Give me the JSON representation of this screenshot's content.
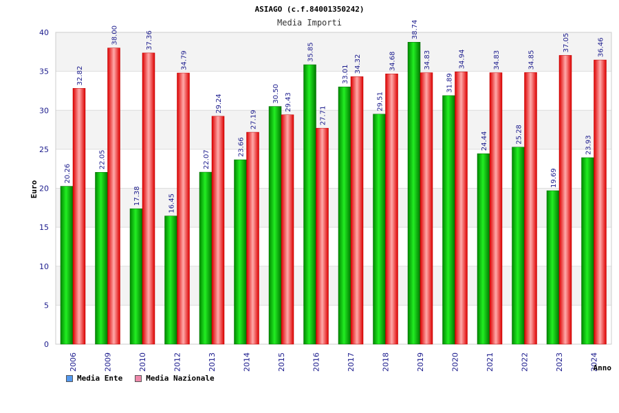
{
  "chart_data": {
    "type": "bar",
    "title": "ASIAGO (c.f.84001350242)",
    "subtitle": "Media Importi",
    "xlabel": "Anno",
    "ylabel": "Euro",
    "ylim": [
      0,
      40
    ],
    "yticks": [
      "0",
      "5",
      "10",
      "15",
      "20",
      "25",
      "30",
      "35",
      "40"
    ],
    "categories": [
      "2006",
      "2009",
      "2010",
      "2012",
      "2013",
      "2014",
      "2015",
      "2016",
      "2017",
      "2018",
      "2019",
      "2020",
      "2021",
      "2022",
      "2023",
      "2024"
    ],
    "series": [
      {
        "name": "Media Ente",
        "color": "#00cc00",
        "legend_color": "#5599ee",
        "values": [
          20.26,
          22.05,
          17.38,
          16.45,
          22.07,
          23.66,
          30.5,
          35.85,
          33.01,
          29.51,
          38.74,
          31.89,
          24.44,
          25.28,
          19.69,
          23.93
        ],
        "labels": [
          "20.26",
          "22.05",
          "17.38",
          "16.45",
          "22.07",
          "23.66",
          "30.50",
          "35.85",
          "33.01",
          "29.51",
          "38.74",
          "31.89",
          "24.44",
          "25.28",
          "19.69",
          "23.93"
        ]
      },
      {
        "name": "Media Nazionale",
        "color": "#ee1111",
        "legend_color": "#ee88aa",
        "values": [
          32.82,
          38.0,
          37.36,
          34.79,
          29.24,
          27.19,
          29.43,
          27.71,
          34.32,
          34.68,
          34.83,
          34.94,
          34.83,
          34.85,
          37.05,
          36.46
        ],
        "labels": [
          "32.82",
          "38.00",
          "37.36",
          "34.79",
          "29.24",
          "27.19",
          "29.43",
          "27.71",
          "34.32",
          "34.68",
          "34.83",
          "34.94",
          "34.83",
          "34.85",
          "37.05",
          "36.46"
        ]
      }
    ],
    "grid": true,
    "legend_position": "bottom-left"
  }
}
